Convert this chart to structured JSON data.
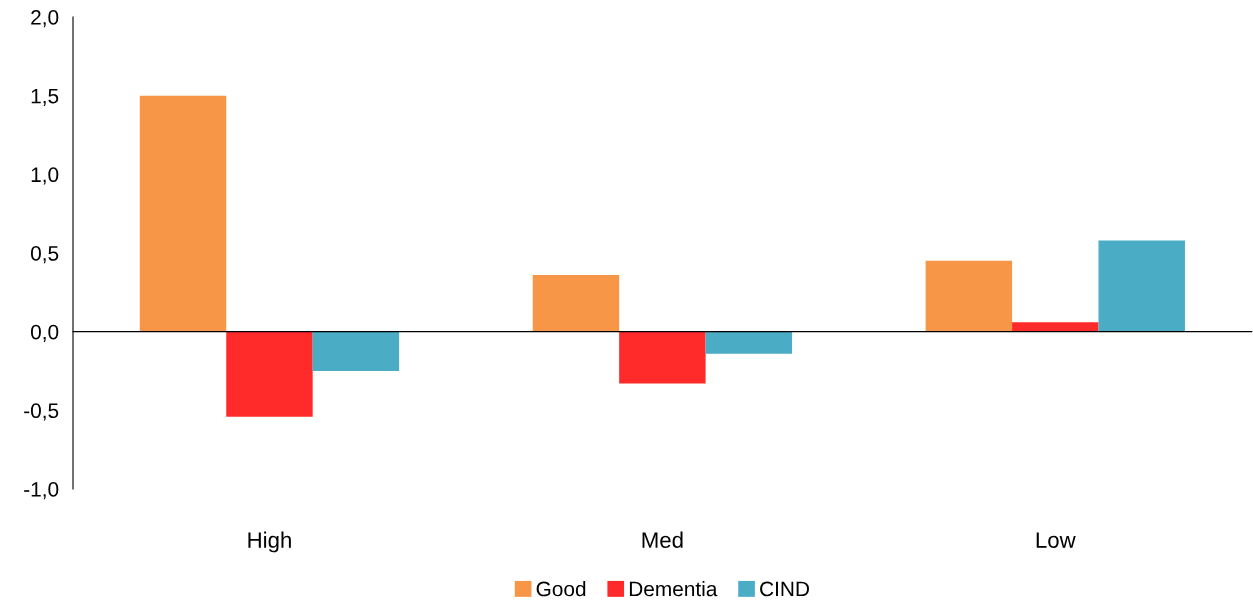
{
  "chart_data": {
    "type": "bar",
    "categories": [
      "High",
      "Med",
      "Low"
    ],
    "series": [
      {
        "name": "Good",
        "color": "#f79646",
        "values": [
          1.5,
          0.36,
          0.45
        ]
      },
      {
        "name": "Dementia",
        "color": "#ff2a2a",
        "values": [
          -0.54,
          -0.33,
          0.06
        ]
      },
      {
        "name": "CIND",
        "color": "#4bacc6",
        "values": [
          -0.25,
          -0.14,
          0.58
        ]
      }
    ],
    "ylim": [
      -1.0,
      2.0
    ],
    "yticks": [
      {
        "value": -1.0,
        "label": "-1,0"
      },
      {
        "value": -0.5,
        "label": "-0,5"
      },
      {
        "value": 0.0,
        "label": "0,0"
      },
      {
        "value": 0.5,
        "label": "0,5"
      },
      {
        "value": 1.0,
        "label": "1,0"
      },
      {
        "value": 1.5,
        "label": "1,5"
      },
      {
        "value": 2.0,
        "label": "2,0"
      }
    ],
    "legend": "bottom"
  }
}
